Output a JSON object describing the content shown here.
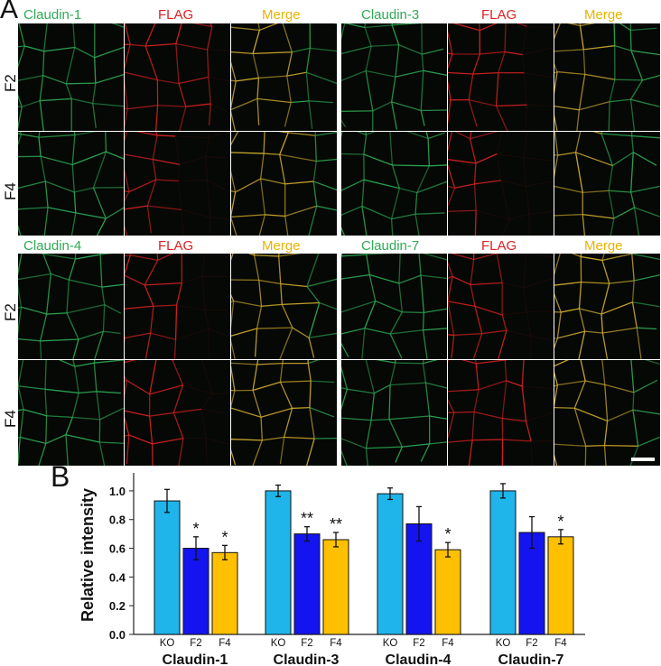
{
  "panel_a": {
    "letter": "A",
    "row_labels": [
      "F2",
      "F4"
    ],
    "groups": [
      {
        "headers": [
          "Claudin-1",
          "FLAG",
          "Merge"
        ]
      },
      {
        "headers": [
          "Claudin-3",
          "FLAG",
          "Merge"
        ]
      },
      {
        "headers": [
          "Claudin-4",
          "FLAG",
          "Merge"
        ]
      },
      {
        "headers": [
          "Claudin-7",
          "FLAG",
          "Merge"
        ]
      }
    ],
    "colors": {
      "green": "#2faa55",
      "red": "#dd2222",
      "yellow": "#e8b400"
    }
  },
  "panel_b": {
    "letter": "B"
  },
  "chart_data": {
    "type": "bar",
    "ylabel": "Relative intensity",
    "ylim": [
      0,
      1.1
    ],
    "yticks": [
      "0.0",
      "0.2",
      "0.4",
      "0.6",
      "0.8",
      "1.0"
    ],
    "groups": [
      {
        "name": "Claudin-1",
        "bars": [
          {
            "label": "KO",
            "value": 0.93,
            "err": 0.08,
            "sig": ""
          },
          {
            "label": "F2",
            "value": 0.6,
            "err": 0.08,
            "sig": "*"
          },
          {
            "label": "F4",
            "value": 0.57,
            "err": 0.05,
            "sig": "*"
          }
        ]
      },
      {
        "name": "Claudin-3",
        "bars": [
          {
            "label": "KO",
            "value": 1.0,
            "err": 0.04,
            "sig": ""
          },
          {
            "label": "F2",
            "value": 0.7,
            "err": 0.05,
            "sig": "**"
          },
          {
            "label": "F4",
            "value": 0.66,
            "err": 0.05,
            "sig": "**"
          }
        ]
      },
      {
        "name": "Claudin-4",
        "bars": [
          {
            "label": "KO",
            "value": 0.98,
            "err": 0.04,
            "sig": ""
          },
          {
            "label": "F2",
            "value": 0.77,
            "err": 0.12,
            "sig": ""
          },
          {
            "label": "F4",
            "value": 0.59,
            "err": 0.05,
            "sig": "*"
          }
        ]
      },
      {
        "name": "Claudin-7",
        "bars": [
          {
            "label": "KO",
            "value": 1.0,
            "err": 0.05,
            "sig": ""
          },
          {
            "label": "F2",
            "value": 0.71,
            "err": 0.11,
            "sig": ""
          },
          {
            "label": "F4",
            "value": 0.68,
            "err": 0.05,
            "sig": "*"
          }
        ]
      }
    ],
    "bar_colors": {
      "KO": "#1fb4ea",
      "F2": "#1414f0",
      "F4": "#ffc000"
    }
  }
}
